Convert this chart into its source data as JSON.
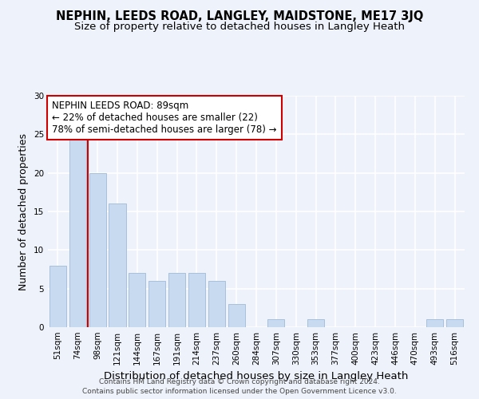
{
  "title": "NEPHIN, LEEDS ROAD, LANGLEY, MAIDSTONE, ME17 3JQ",
  "subtitle": "Size of property relative to detached houses in Langley Heath",
  "xlabel": "Distribution of detached houses by size in Langley Heath",
  "ylabel": "Number of detached properties",
  "categories": [
    "51sqm",
    "74sqm",
    "98sqm",
    "121sqm",
    "144sqm",
    "167sqm",
    "191sqm",
    "214sqm",
    "237sqm",
    "260sqm",
    "284sqm",
    "307sqm",
    "330sqm",
    "353sqm",
    "377sqm",
    "400sqm",
    "423sqm",
    "446sqm",
    "470sqm",
    "493sqm",
    "516sqm"
  ],
  "values": [
    8,
    25,
    20,
    16,
    7,
    6,
    7,
    7,
    6,
    3,
    0,
    1,
    0,
    1,
    0,
    0,
    0,
    0,
    0,
    1,
    1
  ],
  "bar_color": "#c8daf0",
  "bar_edge_color": "#a8c0dc",
  "vline_color": "#cc0000",
  "vline_x_index": 1.5,
  "annotation_text": "NEPHIN LEEDS ROAD: 89sqm\n← 22% of detached houses are smaller (22)\n78% of semi-detached houses are larger (78) →",
  "annotation_box_color": "white",
  "annotation_box_edge_color": "#cc0000",
  "ylim": [
    0,
    30
  ],
  "yticks": [
    0,
    5,
    10,
    15,
    20,
    25,
    30
  ],
  "footer": "Contains HM Land Registry data © Crown copyright and database right 2024.\nContains public sector information licensed under the Open Government Licence v3.0.",
  "background_color": "#eef2fa",
  "grid_color": "white",
  "title_fontsize": 10.5,
  "subtitle_fontsize": 9.5,
  "xlabel_fontsize": 9.5,
  "ylabel_fontsize": 9,
  "tick_fontsize": 7.5,
  "annotation_fontsize": 8.5,
  "footer_fontsize": 6.5
}
